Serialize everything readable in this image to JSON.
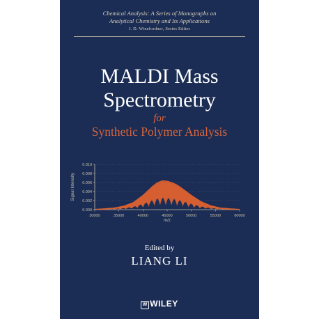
{
  "series": {
    "line1": "Chemical Analysis: A Series of Monographs on",
    "line2": "Analytical Chemistry and Its Applications",
    "line3": "J. D. Winefordner, Series Editor"
  },
  "title": {
    "line1": "MALDI Mass",
    "line2": "Spectrometry",
    "for": "for",
    "subtitle": "Synthetic Polymer Analysis"
  },
  "editor": {
    "label": "Edited by",
    "name": "LIANG LI"
  },
  "publisher": {
    "mark": "W",
    "name": "WILEY"
  },
  "colors": {
    "background": "#1b2c55",
    "accent": "#d8643a",
    "series_text": "#d9d2b8"
  },
  "chart_data": {
    "type": "line",
    "xlabel": "m/z",
    "ylabel": "Signal Intensity",
    "xlim": [
      30000,
      60000
    ],
    "ylim": [
      0,
      0.01
    ],
    "x_ticks": [
      "30000",
      "35000",
      "40000",
      "45000",
      "50000",
      "55000",
      "60000"
    ],
    "y_ticks": [
      "0.000",
      "0.002",
      "0.004",
      "0.006",
      "0.008",
      "0.010"
    ],
    "series": [
      {
        "color": "#e0622f",
        "x": [
          30000,
          32000,
          34000,
          36000,
          38000,
          40000,
          42000,
          43000,
          44000,
          45000,
          46000,
          47000,
          48000,
          50000,
          52000,
          54000,
          56000,
          58000,
          60000
        ],
        "y": [
          0.0001,
          0.0002,
          0.0004,
          0.0008,
          0.0016,
          0.0032,
          0.0052,
          0.006,
          0.0064,
          0.0063,
          0.006,
          0.0055,
          0.0048,
          0.0032,
          0.0018,
          0.0009,
          0.0004,
          0.0002,
          0.0001
        ]
      }
    ]
  }
}
